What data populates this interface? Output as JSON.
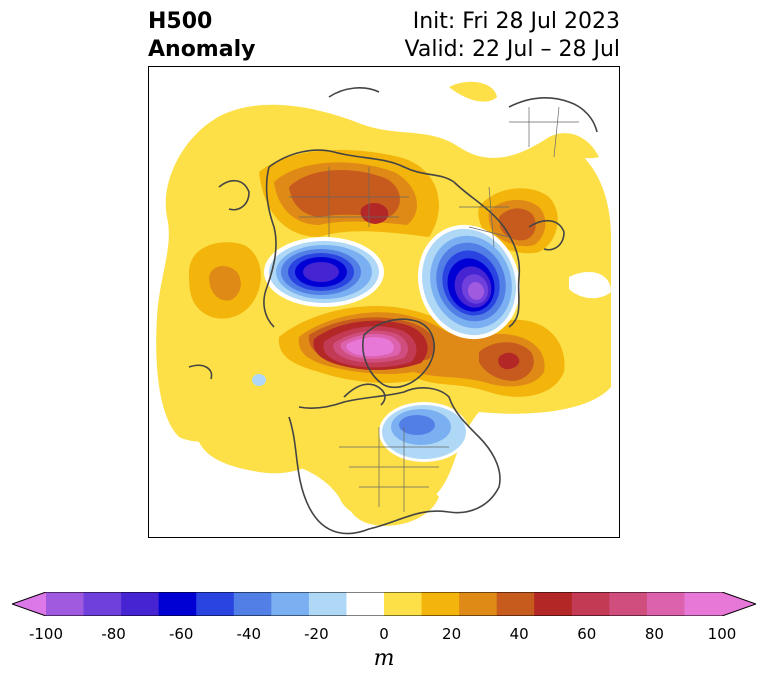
{
  "header": {
    "title_line1": "H500",
    "title_line2": "Anomaly",
    "init_line": "Init: Fri 28 Jul 2023",
    "valid_line": "Valid: 22 Jul – 28 Jul"
  },
  "colorbar": {
    "unit": "m",
    "min": -100,
    "max": 100,
    "extend": "both",
    "ticks": [
      "-100",
      "-80",
      "-60",
      "-40",
      "-20",
      "0",
      "20",
      "40",
      "60",
      "80",
      "100"
    ],
    "levels": [
      -100,
      -90,
      -80,
      -70,
      -60,
      -50,
      -40,
      -30,
      -20,
      -10,
      10,
      20,
      30,
      40,
      50,
      60,
      70,
      80,
      90,
      100
    ],
    "colors": {
      "n100": "#dc78e8",
      "n90": "#a05ae0",
      "n80": "#7040dc",
      "n70": "#4624d2",
      "n60": "#0000d4",
      "n50": "#2a44e2",
      "n40": "#527fe6",
      "n30": "#7ab0f2",
      "n20": "#aed8f6",
      "zero": "#ffffff",
      "p10": "#fde047",
      "p20": "#f3b50b",
      "p30": "#df8a16",
      "p40": "#c75b1e",
      "p50": "#b32727",
      "p60": "#c33a55",
      "p70": "#cf4e7e",
      "p80": "#dc62ad",
      "p90": "#e878d8"
    }
  },
  "map": {
    "projection": "north-polar-stereographic",
    "region": "Northern Hemisphere"
  }
}
